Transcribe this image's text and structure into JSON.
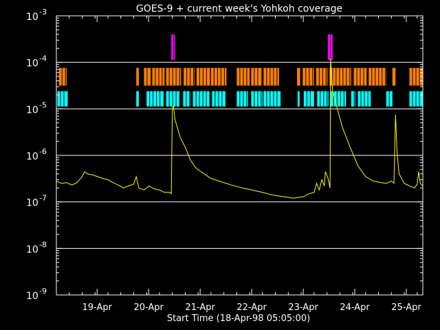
{
  "chart_data": {
    "type": "line",
    "title": "GOES-9 + current week's Yohkoh coverage",
    "xlabel": "Start Time (18-Apr-98 05:05:00)",
    "ylabel": "",
    "y_scale": "log",
    "x_units": "days since 18-Apr-98 05:05 UT",
    "xlim": [
      0,
      7.11
    ],
    "ylim_exponent": [
      -9,
      -3
    ],
    "grid_lines_at_exponent": [
      -8,
      -7,
      -6,
      -5,
      -4
    ],
    "x_ticks": [
      {
        "label": "19-Apr",
        "x": 0.79
      },
      {
        "label": "20-Apr",
        "x": 1.79
      },
      {
        "label": "21-Apr",
        "x": 2.79
      },
      {
        "label": "22-Apr",
        "x": 3.79
      },
      {
        "label": "23-Apr",
        "x": 4.79
      },
      {
        "label": "24-Apr",
        "x": 5.79
      },
      {
        "label": "25-Apr",
        "x": 6.79
      }
    ],
    "y_ticks": [
      {
        "base": "10",
        "exp": "-9",
        "e": -9
      },
      {
        "base": "10",
        "exp": "-8",
        "e": -8
      },
      {
        "base": "10",
        "exp": "-7",
        "e": -7
      },
      {
        "base": "10",
        "exp": "-6",
        "e": -6
      },
      {
        "base": "10",
        "exp": "-5",
        "e": -5
      },
      {
        "base": "10",
        "exp": "-4",
        "e": -4
      },
      {
        "base": "10",
        "exp": "-3",
        "e": -3
      }
    ],
    "flux_series": {
      "color": "#ffff00",
      "points": [
        [
          0.0,
          2.8e-07
        ],
        [
          0.1,
          2.5e-07
        ],
        [
          0.2,
          2.6e-07
        ],
        [
          0.3,
          2.3e-07
        ],
        [
          0.4,
          2.6e-07
        ],
        [
          0.5,
          3.5e-07
        ],
        [
          0.55,
          4.5e-07
        ],
        [
          0.6,
          4e-07
        ],
        [
          0.7,
          3.8e-07
        ],
        [
          0.8,
          3.5e-07
        ],
        [
          0.9,
          3.2e-07
        ],
        [
          1.0,
          3e-07
        ],
        [
          1.1,
          2.6e-07
        ],
        [
          1.2,
          2.3e-07
        ],
        [
          1.3,
          2e-07
        ],
        [
          1.4,
          2.2e-07
        ],
        [
          1.5,
          2.4e-07
        ],
        [
          1.55,
          3.5e-07
        ],
        [
          1.6,
          2e-07
        ],
        [
          1.7,
          1.8e-07
        ],
        [
          1.8,
          2.2e-07
        ],
        [
          1.9,
          1.9e-07
        ],
        [
          2.0,
          1.8e-07
        ],
        [
          2.1,
          1.6e-07
        ],
        [
          2.2,
          1.6e-07
        ],
        [
          2.23,
          1.5e-07
        ],
        [
          2.25,
          1e-05
        ],
        [
          2.27,
          1.2e-05
        ],
        [
          2.3,
          6e-06
        ],
        [
          2.4,
          2.5e-06
        ],
        [
          2.5,
          1.5e-06
        ],
        [
          2.6,
          8e-07
        ],
        [
          2.7,
          5.5e-07
        ],
        [
          2.8,
          4.5e-07
        ],
        [
          2.9,
          3.8e-07
        ],
        [
          3.0,
          3.2e-07
        ],
        [
          3.2,
          2.7e-07
        ],
        [
          3.4,
          2.3e-07
        ],
        [
          3.6,
          2e-07
        ],
        [
          3.8,
          1.8e-07
        ],
        [
          4.0,
          1.6e-07
        ],
        [
          4.2,
          1.4e-07
        ],
        [
          4.4,
          1.3e-07
        ],
        [
          4.6,
          1.2e-07
        ],
        [
          4.8,
          1.3e-07
        ],
        [
          4.9,
          1.5e-07
        ],
        [
          5.0,
          1.6e-07
        ],
        [
          5.05,
          2.5e-07
        ],
        [
          5.1,
          1.8e-07
        ],
        [
          5.15,
          3e-07
        ],
        [
          5.2,
          2.2e-07
        ],
        [
          5.22,
          4.5e-07
        ],
        [
          5.27,
          3.2e-07
        ],
        [
          5.31,
          2e-07
        ],
        [
          5.32,
          0.00012
        ],
        [
          5.36,
          2.5e-05
        ],
        [
          5.45,
          1e-05
        ],
        [
          5.55,
          4e-06
        ],
        [
          5.7,
          1.5e-06
        ],
        [
          5.85,
          6e-07
        ],
        [
          6.0,
          3.5e-07
        ],
        [
          6.15,
          2.8e-07
        ],
        [
          6.3,
          2.6e-07
        ],
        [
          6.4,
          2.5e-07
        ],
        [
          6.5,
          2.8e-07
        ],
        [
          6.55,
          2.5e-07
        ],
        [
          6.58,
          7.5e-06
        ],
        [
          6.61,
          1.2e-06
        ],
        [
          6.65,
          4e-07
        ],
        [
          6.75,
          2.5e-07
        ],
        [
          6.85,
          2.2e-07
        ],
        [
          6.95,
          2e-07
        ],
        [
          7.0,
          2.4e-07
        ],
        [
          7.03,
          4.5e-07
        ],
        [
          7.06,
          2.5e-07
        ],
        [
          7.11,
          2.2e-07
        ]
      ]
    },
    "coverage_bands": [
      {
        "name": "magenta",
        "color": "#ff00ff",
        "y_lo_exponent": -3.95,
        "y_hi_exponent": -3.4,
        "segments": [
          [
            2.23,
            2.27
          ],
          [
            2.28,
            2.3
          ],
          [
            5.27,
            5.31
          ],
          [
            5.32,
            5.36
          ]
        ]
      },
      {
        "name": "orange",
        "color": "#ff8000",
        "y_lo_exponent": -4.5,
        "y_hi_exponent": -4.12,
        "segments": [
          [
            0.05,
            0.2
          ],
          [
            1.55,
            1.6
          ],
          [
            1.7,
            1.83
          ],
          [
            1.86,
            2.1
          ],
          [
            2.13,
            2.42
          ],
          [
            2.47,
            2.68
          ],
          [
            2.72,
            2.98
          ],
          [
            3.0,
            3.3
          ],
          [
            3.5,
            3.75
          ],
          [
            3.78,
            3.98
          ],
          [
            4.02,
            4.32
          ],
          [
            4.67,
            4.73
          ],
          [
            4.78,
            5.0
          ],
          [
            5.04,
            5.26
          ],
          [
            5.3,
            5.72
          ],
          [
            5.77,
            6.02
          ],
          [
            6.06,
            6.4
          ],
          [
            6.52,
            6.58
          ],
          [
            6.85,
            7.11
          ]
        ]
      },
      {
        "name": "cyan",
        "color": "#00ffff",
        "y_lo_exponent": -4.95,
        "y_hi_exponent": -4.62,
        "segments": [
          [
            0.02,
            0.22
          ],
          [
            1.55,
            1.6
          ],
          [
            1.75,
            2.08
          ],
          [
            2.13,
            2.4
          ],
          [
            2.46,
            2.6
          ],
          [
            2.65,
            2.97
          ],
          [
            3.02,
            3.28
          ],
          [
            3.5,
            3.72
          ],
          [
            3.78,
            4.0
          ],
          [
            4.02,
            4.35
          ],
          [
            4.68,
            4.72
          ],
          [
            4.8,
            5.0
          ],
          [
            5.06,
            5.28
          ],
          [
            5.32,
            5.62
          ],
          [
            5.72,
            5.8
          ],
          [
            5.85,
            6.1
          ],
          [
            6.4,
            6.52
          ],
          [
            6.85,
            7.11
          ]
        ]
      }
    ]
  }
}
